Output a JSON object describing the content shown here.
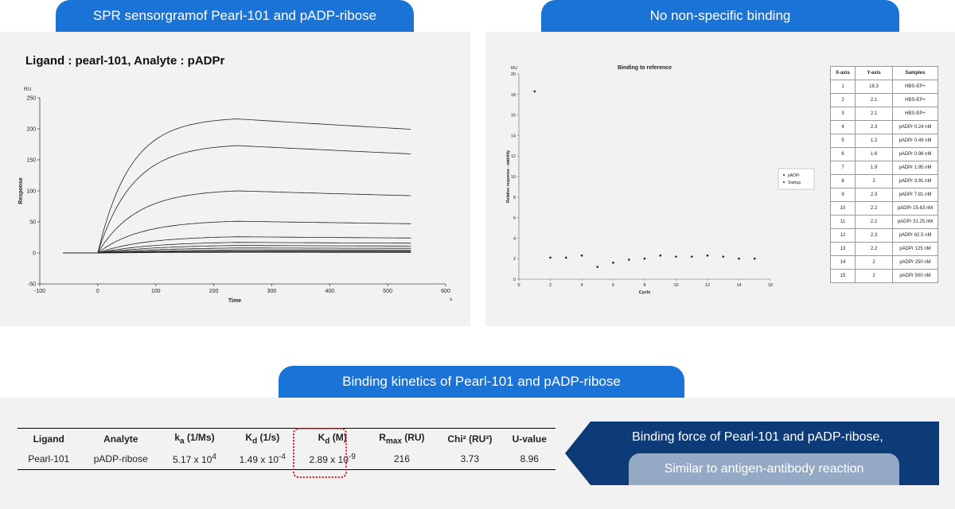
{
  "headers": {
    "left": "SPR sensorgramof Pearl-101 and pADP-ribose",
    "right": "No non-specific binding",
    "middle": "Binding kinetics of Pearl-101 and pADP-ribose"
  },
  "chart_data": [
    {
      "type": "line",
      "title": "Ligand : pearl-101, Analyte : pADPr",
      "xlabel": "Time",
      "ylabel": "Response",
      "y_unit": "RU",
      "x_unit": "s",
      "xlim": [
        -100,
        600
      ],
      "ylim": [
        -50,
        250
      ],
      "xticks": [
        -100,
        0,
        100,
        200,
        300,
        400,
        500,
        600
      ],
      "yticks": [
        -50,
        0,
        50,
        100,
        150,
        200,
        250
      ],
      "baseline_start": -60,
      "injection_start": 0,
      "injection_end": 240,
      "end_time": 540,
      "series_plateaus": [
        216,
        173,
        100,
        51,
        26,
        17,
        12,
        8,
        5,
        3,
        2,
        1
      ]
    },
    {
      "type": "scatter",
      "title": "Binding to reference",
      "xlabel": "Cycle",
      "ylabel": "Relative response - stability",
      "y_unit": "RU",
      "xlim": [
        0,
        16
      ],
      "ylim": [
        0,
        20
      ],
      "xticks": [
        0,
        2,
        4,
        6,
        8,
        10,
        12,
        14,
        16
      ],
      "yticks": [
        0,
        2,
        4,
        6,
        8,
        10,
        12,
        14,
        16,
        18,
        20
      ],
      "legend": [
        "pADPr",
        "Startup"
      ],
      "legend_position": "right",
      "points": [
        {
          "x": 1,
          "y": 18.3
        },
        {
          "x": 2,
          "y": 2.1
        },
        {
          "x": 3,
          "y": 2.1
        },
        {
          "x": 4,
          "y": 2.3
        },
        {
          "x": 5,
          "y": 1.2
        },
        {
          "x": 6,
          "y": 1.6
        },
        {
          "x": 7,
          "y": 1.9
        },
        {
          "x": 8,
          "y": 2
        },
        {
          "x": 9,
          "y": 2.3
        },
        {
          "x": 10,
          "y": 2.2
        },
        {
          "x": 11,
          "y": 2.2
        },
        {
          "x": 12,
          "y": 2.3
        },
        {
          "x": 13,
          "y": 2.2
        },
        {
          "x": 14,
          "y": 2
        },
        {
          "x": 15,
          "y": 2
        }
      ]
    }
  ],
  "samples_table": {
    "columns": [
      "X-axis",
      "Y-axis",
      "Samples"
    ],
    "rows": [
      [
        "1",
        "18.3",
        "HBS-EP+"
      ],
      [
        "2",
        "2.1",
        "HBS-EP+"
      ],
      [
        "3",
        "2.1",
        "HBS-EP+"
      ],
      [
        "4",
        "2.3",
        "pADPr  0.24 nM"
      ],
      [
        "5",
        "1.2",
        "pADPr  0.49 nM"
      ],
      [
        "6",
        "1.6",
        "pADPr  0.98 nM"
      ],
      [
        "7",
        "1.9",
        "pADPr  1.95 nM"
      ],
      [
        "8",
        "2",
        "pADPr  3.91 nM"
      ],
      [
        "9",
        "2.3",
        "pADPr  7.81 nM"
      ],
      [
        "10",
        "2.2",
        "pADPr  15.63 nM"
      ],
      [
        "11",
        "2.2",
        "pADPr  31.25 nM"
      ],
      [
        "12",
        "2.3",
        "pADPr  62.5 nM"
      ],
      [
        "13",
        "2.2",
        "pADPr  125 nM"
      ],
      [
        "14",
        "2",
        "pADPr  250 nM"
      ],
      [
        "15",
        "2",
        "pADPr  500 nM"
      ]
    ]
  },
  "kinetics_table": {
    "headers": {
      "ligand": "Ligand",
      "analyte": "Analyte",
      "ka": "k",
      "ka_sub": "a",
      "ka_unit": " (1/Ms)",
      "kd": "K",
      "kd_sub": "d",
      "kd_unit": " (1/s)",
      "KD": "K",
      "KD_sub": "d",
      "KD_unit": " (M)",
      "rmax": "R",
      "rmax_sub": "max",
      "rmax_unit": " (RU)",
      "chi": "Chi² (RU²)",
      "u": "U-value"
    },
    "row": {
      "ligand": "Pearl-101",
      "analyte": "pADP-ribose",
      "ka": "5.17 x 10",
      "ka_exp": "4",
      "kd": "1.49 x 10",
      "kd_exp": "-4",
      "KD": "2.89 x 10",
      "KD_exp": "-9",
      "rmax": "216",
      "chi": "3.73",
      "u": "8.96"
    }
  },
  "conclusion": {
    "main": "Binding force of Pearl-101 and pADP-ribose,",
    "sub": "Similar to antigen-antibody reaction"
  },
  "colors": {
    "accent": "#1a73d6",
    "navy": "#0d3b78",
    "pill": "#94a9c4",
    "panel": "#f2f2f2",
    "highlight": "#d42020"
  }
}
